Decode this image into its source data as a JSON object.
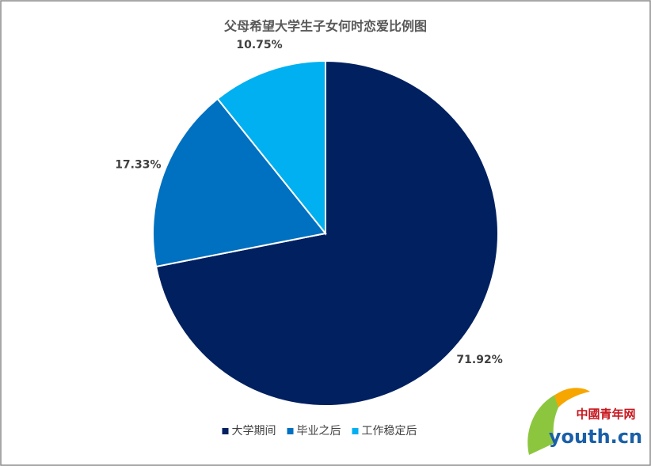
{
  "chart_data": {
    "type": "pie",
    "title": "父母希望大学生子女何时恋爱比例图",
    "categories": [
      "大学期间",
      "毕业之后",
      "工作稳定后"
    ],
    "values": [
      71.92,
      17.33,
      10.75
    ],
    "value_labels": [
      "71.92%",
      "17.33%",
      "10.75%"
    ],
    "colors": [
      "#002060",
      "#0070c0",
      "#00b0f0"
    ],
    "legend": "bottom"
  },
  "watermark": {
    "brand": "中國青年网",
    "site": "youth.cn"
  }
}
